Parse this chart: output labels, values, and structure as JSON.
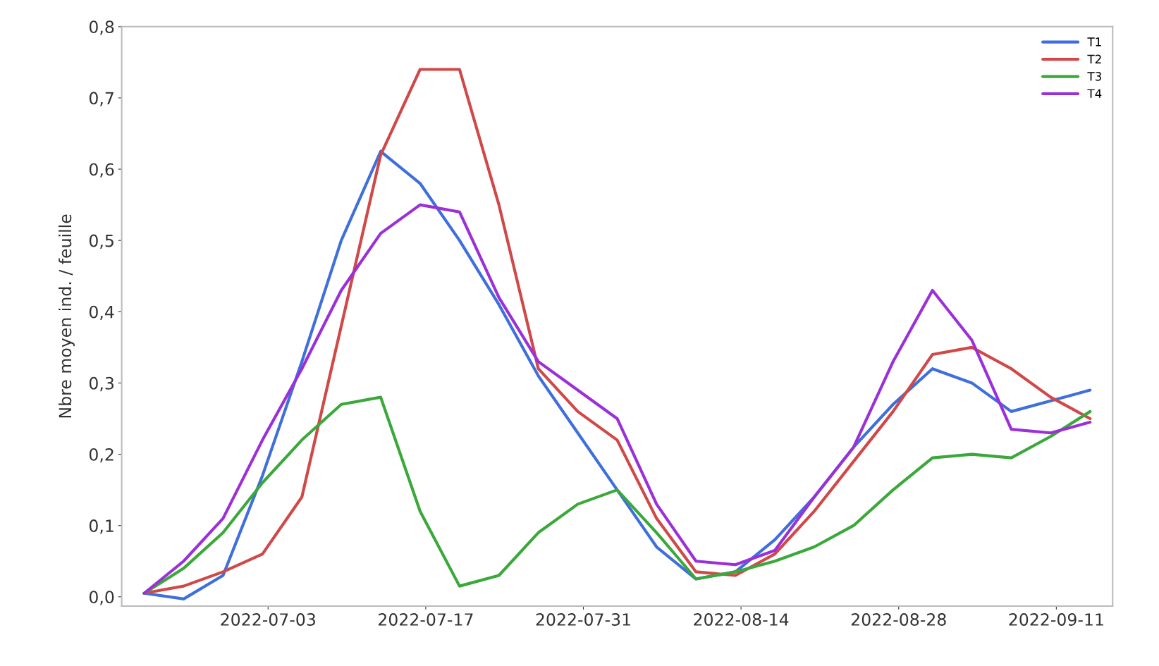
{
  "chart_data": {
    "type": "line",
    "ylabel": "Nbre moyen ind. / feuille",
    "x": [
      "2022-06-22",
      "2022-06-25T12:00",
      "2022-06-29",
      "2022-07-02T12:00",
      "2022-07-06",
      "2022-07-09T12:00",
      "2022-07-13",
      "2022-07-16T12:00",
      "2022-07-20",
      "2022-07-23T12:00",
      "2022-07-27",
      "2022-07-30T12:00",
      "2022-08-03",
      "2022-08-06T12:00",
      "2022-08-10",
      "2022-08-13T12:00",
      "2022-08-17",
      "2022-08-20T12:00",
      "2022-08-24",
      "2022-08-27T12:00",
      "2022-08-31",
      "2022-09-03T12:00",
      "2022-09-07",
      "2022-09-10T12:00",
      "2022-09-14"
    ],
    "series": [
      {
        "name": "T1",
        "color": "#3f6fdc",
        "values": [
          0.005,
          -0.003,
          0.03,
          0.17,
          0.33,
          0.5,
          0.625,
          0.58,
          0.5,
          0.41,
          0.31,
          0.23,
          0.15,
          0.07,
          0.025,
          0.035,
          0.08,
          0.14,
          0.21,
          0.27,
          0.32,
          0.3,
          0.26,
          0.275,
          0.29
        ]
      },
      {
        "name": "T2",
        "color": "#d04848",
        "values": [
          0.005,
          0.015,
          0.035,
          0.06,
          0.14,
          0.38,
          0.62,
          0.74,
          0.74,
          0.55,
          0.32,
          0.26,
          0.22,
          0.11,
          0.035,
          0.03,
          0.06,
          0.12,
          0.19,
          0.26,
          0.34,
          0.35,
          0.32,
          0.28,
          0.25
        ]
      },
      {
        "name": "T3",
        "color": "#3aa83a",
        "values": [
          0.005,
          0.04,
          0.09,
          0.16,
          0.22,
          0.27,
          0.28,
          0.12,
          0.015,
          0.03,
          0.09,
          0.13,
          0.15,
          0.09,
          0.025,
          0.035,
          0.05,
          0.07,
          0.1,
          0.15,
          0.195,
          0.2,
          0.195,
          0.225,
          0.26
        ]
      },
      {
        "name": "T4",
        "color": "#9b30d9",
        "values": [
          0.005,
          0.05,
          0.11,
          0.22,
          0.32,
          0.43,
          0.51,
          0.55,
          0.54,
          0.42,
          0.33,
          0.29,
          0.25,
          0.13,
          0.05,
          0.045,
          0.065,
          0.14,
          0.21,
          0.33,
          0.43,
          0.36,
          0.235,
          0.23,
          0.245
        ]
      }
    ],
    "xlim": [
      "2022-06-20",
      "2022-09-16"
    ],
    "xticks": [
      "2022-07-03",
      "2022-07-17",
      "2022-07-31",
      "2022-08-14",
      "2022-08-28",
      "2022-09-11"
    ],
    "ylim": [
      -0.013,
      0.8
    ],
    "yticks": [
      {
        "value": 0,
        "label": "0,0"
      },
      {
        "value": 0.1,
        "label": "0,1"
      },
      {
        "value": 0.2,
        "label": "0,2"
      },
      {
        "value": 0.3,
        "label": "0,3"
      },
      {
        "value": 0.4,
        "label": "0,4"
      },
      {
        "value": 0.5,
        "label": "0,5"
      },
      {
        "value": 0.6,
        "label": "0,6"
      },
      {
        "value": 0.7,
        "label": "0,7"
      },
      {
        "value": 0.8,
        "label": "0,8"
      }
    ],
    "legend": "top right",
    "grid": false,
    "marker": "none",
    "line_style": "solid"
  }
}
